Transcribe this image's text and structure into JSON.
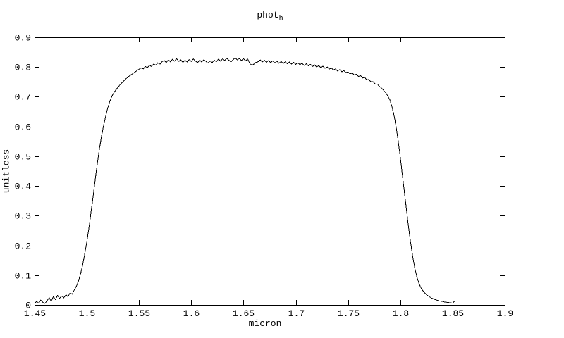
{
  "page": {
    "background": "#ffffff",
    "foreground": "#000000"
  },
  "chart_data": {
    "type": "line",
    "title": "phot_h",
    "title_main": "phot",
    "title_sub": "h",
    "xlabel": "micron",
    "ylabel": "unitless",
    "xlim": [
      1.45,
      1.9
    ],
    "ylim": [
      0,
      0.9
    ],
    "grid": false,
    "legend": "none",
    "line_color": "#000000",
    "frame_color": "#000000",
    "xticks": [
      {
        "v": 1.45,
        "label": "1.45"
      },
      {
        "v": 1.5,
        "label": "1.5"
      },
      {
        "v": 1.55,
        "label": "1.55"
      },
      {
        "v": 1.6,
        "label": "1.6"
      },
      {
        "v": 1.65,
        "label": "1.65"
      },
      {
        "v": 1.7,
        "label": "1.7"
      },
      {
        "v": 1.75,
        "label": "1.75"
      },
      {
        "v": 1.8,
        "label": "1.8"
      },
      {
        "v": 1.85,
        "label": "1.85"
      },
      {
        "v": 1.9,
        "label": "1.9"
      }
    ],
    "yticks": [
      {
        "v": 0,
        "label": "0"
      },
      {
        "v": 0.1,
        "label": "0.1"
      },
      {
        "v": 0.2,
        "label": "0.2"
      },
      {
        "v": 0.3,
        "label": "0.3"
      },
      {
        "v": 0.4,
        "label": "0.4"
      },
      {
        "v": 0.5,
        "label": "0.5"
      },
      {
        "v": 0.6,
        "label": "0.6"
      },
      {
        "v": 0.7,
        "label": "0.7"
      },
      {
        "v": 0.8,
        "label": "0.8"
      },
      {
        "v": 0.9,
        "label": "0.9"
      }
    ],
    "series": [
      {
        "name": "phot_h",
        "x_start": 1.45,
        "x_step": 0.002,
        "values": [
          0.004,
          0.012,
          0.006,
          0.016,
          0.008,
          0.005,
          0.014,
          0.024,
          0.012,
          0.028,
          0.018,
          0.032,
          0.022,
          0.03,
          0.024,
          0.034,
          0.028,
          0.04,
          0.036,
          0.05,
          0.062,
          0.08,
          0.104,
          0.134,
          0.17,
          0.212,
          0.258,
          0.31,
          0.364,
          0.42,
          0.474,
          0.524,
          0.566,
          0.602,
          0.634,
          0.662,
          0.684,
          0.702,
          0.714,
          0.724,
          0.733,
          0.741,
          0.749,
          0.756,
          0.762,
          0.768,
          0.773,
          0.778,
          0.783,
          0.788,
          0.793,
          0.797,
          0.794,
          0.802,
          0.798,
          0.806,
          0.802,
          0.81,
          0.806,
          0.814,
          0.81,
          0.818,
          0.822,
          0.815,
          0.824,
          0.818,
          0.826,
          0.82,
          0.828,
          0.819,
          0.824,
          0.816,
          0.823,
          0.817,
          0.825,
          0.819,
          0.827,
          0.82,
          0.815,
          0.823,
          0.817,
          0.825,
          0.819,
          0.813,
          0.821,
          0.815,
          0.823,
          0.818,
          0.826,
          0.82,
          0.828,
          0.822,
          0.83,
          0.823,
          0.817,
          0.825,
          0.831,
          0.824,
          0.829,
          0.822,
          0.828,
          0.821,
          0.827,
          0.812,
          0.806,
          0.81,
          0.816,
          0.818,
          0.824,
          0.817,
          0.823,
          0.816,
          0.822,
          0.815,
          0.821,
          0.814,
          0.82,
          0.813,
          0.819,
          0.812,
          0.818,
          0.811,
          0.817,
          0.81,
          0.816,
          0.809,
          0.815,
          0.808,
          0.813,
          0.806,
          0.811,
          0.804,
          0.809,
          0.802,
          0.807,
          0.8,
          0.805,
          0.798,
          0.803,
          0.796,
          0.8,
          0.793,
          0.797,
          0.79,
          0.794,
          0.787,
          0.791,
          0.784,
          0.788,
          0.781,
          0.784,
          0.777,
          0.78,
          0.773,
          0.776,
          0.768,
          0.771,
          0.763,
          0.765,
          0.757,
          0.758,
          0.75,
          0.751,
          0.743,
          0.743,
          0.735,
          0.73,
          0.722,
          0.714,
          0.703,
          0.69,
          0.668,
          0.638,
          0.6,
          0.552,
          0.497,
          0.438,
          0.378,
          0.318,
          0.26,
          0.207,
          0.16,
          0.122,
          0.093,
          0.071,
          0.056,
          0.046,
          0.038,
          0.032,
          0.027,
          0.023,
          0.02,
          0.017,
          0.015,
          0.013,
          0.012,
          0.01,
          0.009,
          0.008,
          0.007,
          0.006,
          0.013
        ]
      }
    ]
  }
}
